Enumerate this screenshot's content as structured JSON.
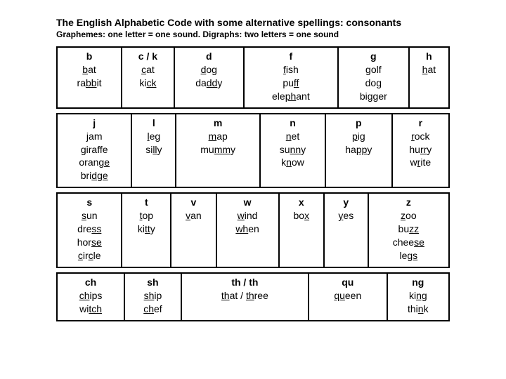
{
  "title": "The English Alphabetic Code with some alternative spellings: consonants",
  "subtitle": "Graphemes: one letter = one sound. Digraphs: two letters = one sound",
  "row1": [
    {
      "h": "b",
      "words": [
        [
          [
            "b",
            "u"
          ],
          [
            "at",
            ""
          ]
        ],
        [
          [
            "ra",
            ""
          ],
          [
            "bb",
            "u"
          ],
          [
            "it",
            ""
          ]
        ]
      ]
    },
    {
      "h": "c / k",
      "words": [
        [
          [
            "c",
            "u"
          ],
          [
            "at",
            ""
          ]
        ],
        [
          [
            "ki",
            ""
          ],
          [
            "ck",
            "u"
          ]
        ]
      ]
    },
    {
      "h": "d",
      "words": [
        [
          [
            "d",
            "u"
          ],
          [
            "og",
            ""
          ]
        ],
        [
          [
            "da",
            ""
          ],
          [
            "dd",
            "u"
          ],
          [
            "y",
            ""
          ]
        ]
      ]
    },
    {
      "h": "f",
      "words": [
        [
          [
            "f",
            "u"
          ],
          [
            "ish",
            ""
          ]
        ],
        [
          [
            "pu",
            ""
          ],
          [
            "ff",
            "u"
          ]
        ],
        [
          [
            "ele",
            ""
          ],
          [
            "ph",
            "u"
          ],
          [
            "ant",
            ""
          ]
        ]
      ]
    },
    {
      "h": "g",
      "words": [
        [
          [
            "g",
            "u"
          ],
          [
            "olf",
            ""
          ]
        ],
        [
          [
            "do",
            ""
          ],
          [
            "g",
            "u"
          ]
        ],
        [
          [
            "bi",
            ""
          ],
          [
            "gg",
            "u"
          ],
          [
            "er",
            ""
          ]
        ]
      ]
    },
    {
      "h": "h",
      "words": [
        [
          [
            "h",
            "u"
          ],
          [
            "at",
            ""
          ]
        ]
      ]
    }
  ],
  "row2": [
    {
      "h": "j",
      "words": [
        [
          [
            "j",
            "u"
          ],
          [
            "am",
            ""
          ]
        ],
        [
          [
            "g",
            "u"
          ],
          [
            "iraffe",
            ""
          ]
        ],
        [
          [
            "oran",
            ""
          ],
          [
            "ge",
            "u"
          ]
        ],
        [
          [
            "bri",
            ""
          ],
          [
            "dge",
            "u"
          ]
        ]
      ]
    },
    {
      "h": "l",
      "words": [
        [
          [
            "l",
            "u"
          ],
          [
            "eg",
            ""
          ]
        ],
        [
          [
            "si",
            ""
          ],
          [
            "ll",
            "u"
          ],
          [
            "y",
            ""
          ]
        ]
      ]
    },
    {
      "h": "m",
      "words": [
        [
          [
            "m",
            "u"
          ],
          [
            "ap",
            ""
          ]
        ],
        [
          [
            "mu",
            ""
          ],
          [
            "mm",
            "u"
          ],
          [
            "y",
            ""
          ]
        ]
      ]
    },
    {
      "h": "n",
      "words": [
        [
          [
            "n",
            "u"
          ],
          [
            "et",
            ""
          ]
        ],
        [
          [
            "su",
            ""
          ],
          [
            "nn",
            "u"
          ],
          [
            "y",
            ""
          ]
        ],
        [
          [
            "k",
            ""
          ],
          [
            "n",
            "u"
          ],
          [
            "ow",
            ""
          ]
        ]
      ]
    },
    {
      "h": "p",
      "words": [
        [
          [
            "p",
            "u"
          ],
          [
            "ig",
            ""
          ]
        ],
        [
          [
            "ha",
            ""
          ],
          [
            "pp",
            "u"
          ],
          [
            "y",
            ""
          ]
        ]
      ]
    },
    {
      "h": "r",
      "words": [
        [
          [
            "r",
            "u"
          ],
          [
            "ock",
            ""
          ]
        ],
        [
          [
            "hu",
            ""
          ],
          [
            "rr",
            "u"
          ],
          [
            "y",
            ""
          ]
        ],
        [
          [
            "w",
            ""
          ],
          [
            "r",
            "u"
          ],
          [
            "ite",
            ""
          ]
        ]
      ]
    }
  ],
  "row3": [
    {
      "h": "s",
      "words": [
        [
          [
            "s",
            "u"
          ],
          [
            "un",
            ""
          ]
        ],
        [
          [
            "dre",
            ""
          ],
          [
            "ss",
            "u"
          ]
        ],
        [
          [
            "hor",
            ""
          ],
          [
            "se",
            "u"
          ]
        ],
        [
          [
            "c",
            "u"
          ],
          [
            "ir",
            ""
          ],
          [
            "c",
            "u"
          ],
          [
            "le",
            ""
          ]
        ]
      ]
    },
    {
      "h": "t",
      "words": [
        [
          [
            "t",
            "u"
          ],
          [
            "op",
            ""
          ]
        ],
        [
          [
            "ki",
            ""
          ],
          [
            "tt",
            "u"
          ],
          [
            "y",
            ""
          ]
        ]
      ]
    },
    {
      "h": "v",
      "words": [
        [
          [
            "v",
            "u"
          ],
          [
            "an",
            ""
          ]
        ]
      ]
    },
    {
      "h": "w",
      "words": [
        [
          [
            "w",
            "u"
          ],
          [
            "ind",
            ""
          ]
        ],
        [
          [
            "wh",
            "u"
          ],
          [
            "en",
            ""
          ]
        ]
      ]
    },
    {
      "h": "x",
      "words": [
        [
          [
            "bo",
            ""
          ],
          [
            "x",
            "u"
          ]
        ]
      ]
    },
    {
      "h": "y",
      "words": [
        [
          [
            "y",
            "u"
          ],
          [
            "es",
            ""
          ]
        ]
      ]
    },
    {
      "h": "z",
      "words": [
        [
          [
            "z",
            "u"
          ],
          [
            "oo",
            ""
          ]
        ],
        [
          [
            "bu",
            ""
          ],
          [
            "zz",
            "u"
          ]
        ],
        [
          [
            "chee",
            ""
          ],
          [
            "se",
            "u"
          ]
        ],
        [
          [
            "le",
            ""
          ],
          [
            "gs",
            "u"
          ]
        ]
      ]
    }
  ],
  "row4": [
    {
      "h": "ch",
      "words": [
        [
          [
            "ch",
            "u"
          ],
          [
            "ips",
            ""
          ]
        ],
        [
          [
            "wi",
            ""
          ],
          [
            "tch",
            "u"
          ]
        ]
      ]
    },
    {
      "h": "sh",
      "words": [
        [
          [
            "sh",
            "u"
          ],
          [
            "ip",
            ""
          ]
        ],
        [
          [
            "ch",
            "u"
          ],
          [
            "ef",
            ""
          ]
        ]
      ]
    },
    {
      "h": "th / th",
      "words": [
        [
          [
            "th",
            "u"
          ],
          [
            "at   /   ",
            ""
          ],
          [
            "th",
            "u"
          ],
          [
            "ree",
            ""
          ]
        ]
      ]
    },
    {
      "h": "qu",
      "words": [
        [
          [
            "qu",
            "u"
          ],
          [
            "een",
            ""
          ]
        ]
      ]
    },
    {
      "h": "ng",
      "words": [
        [
          [
            "ki",
            ""
          ],
          [
            "ng",
            "u"
          ]
        ],
        [
          [
            "thi",
            ""
          ],
          [
            "n",
            "u"
          ],
          [
            "k",
            ""
          ]
        ]
      ]
    }
  ]
}
